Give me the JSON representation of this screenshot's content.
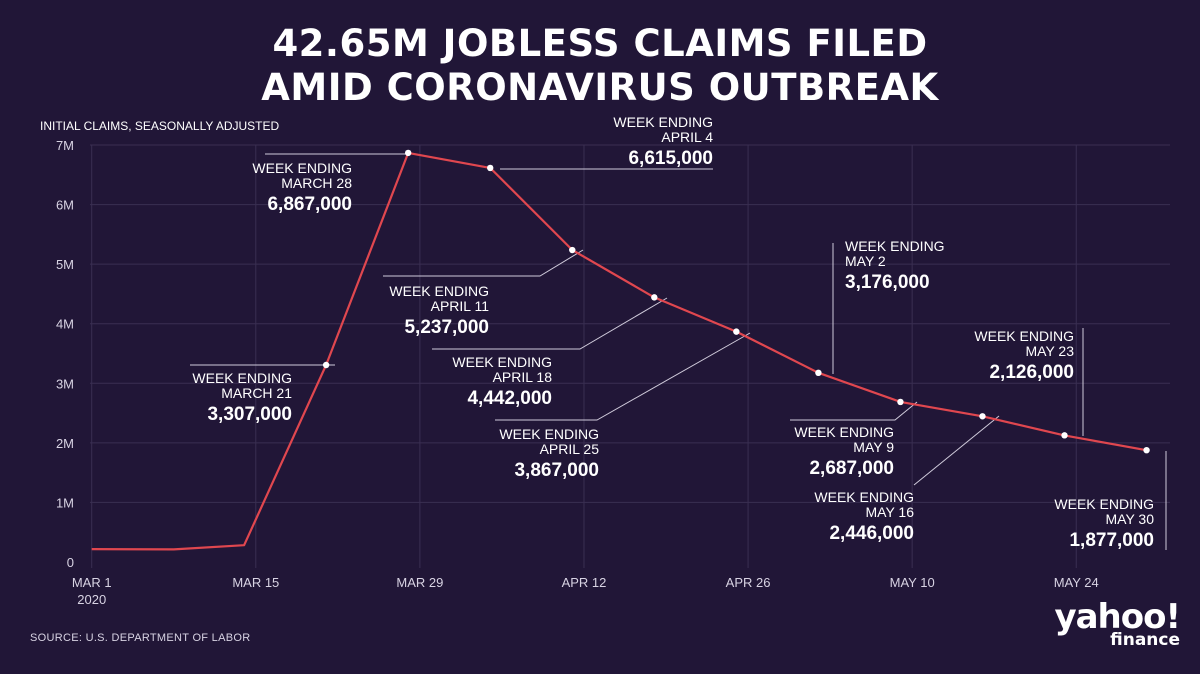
{
  "title_lines": [
    "42.65M JOBLESS CLAIMS FILED",
    "AMID CORONAVIRUS OUTBREAK"
  ],
  "source": "SOURCE:  U.S. DEPARTMENT OF LABOR",
  "logo": {
    "brand": "yahoo!",
    "sub": "finance"
  },
  "colors": {
    "background": "#211637",
    "line": "#e0474f",
    "grid": "#3a2f52",
    "text": "#ffffff",
    "axis_text": "#d8d3e3",
    "leader": "#d0cbdb"
  },
  "chart_data": {
    "type": "line",
    "ylabel": "INITIAL CLAIMS, SEASONALLY ADJUSTED",
    "ylim": [
      0,
      7000000
    ],
    "yticks": [
      0,
      1000000,
      2000000,
      3000000,
      4000000,
      5000000,
      6000000,
      7000000
    ],
    "ytick_labels": [
      "0",
      "1M",
      "2M",
      "3M",
      "4M",
      "5M",
      "6M",
      "7M"
    ],
    "xlim": [
      "2020-02-29",
      "2020-06-01"
    ],
    "xticks": [
      "2020-03-01",
      "2020-03-15",
      "2020-03-29",
      "2020-04-12",
      "2020-04-26",
      "2020-05-10",
      "2020-05-24"
    ],
    "xtick_labels": [
      [
        "MAR 1",
        "2020"
      ],
      [
        "MAR 15"
      ],
      [
        "MAR 29"
      ],
      [
        "APR 12"
      ],
      [
        "APR 26"
      ],
      [
        "MAY 10"
      ],
      [
        "MAY 24"
      ]
    ],
    "grid": true,
    "points": [
      {
        "date": "2020-03-01",
        "value": 217000
      },
      {
        "date": "2020-03-08",
        "value": 211000
      },
      {
        "date": "2020-03-14",
        "value": 282000
      },
      {
        "date": "2020-03-21",
        "value": 3307000,
        "label": [
          "WEEK ENDING",
          "MARCH 21"
        ],
        "value_label": "3,307,000"
      },
      {
        "date": "2020-03-28",
        "value": 6867000,
        "label": [
          "WEEK ENDING",
          "MARCH 28"
        ],
        "value_label": "6,867,000"
      },
      {
        "date": "2020-04-04",
        "value": 6615000,
        "label": [
          "WEEK ENDING",
          "APRIL 4"
        ],
        "value_label": "6,615,000"
      },
      {
        "date": "2020-04-11",
        "value": 5237000,
        "label": [
          "WEEK ENDING",
          "APRIL 11"
        ],
        "value_label": "5,237,000"
      },
      {
        "date": "2020-04-18",
        "value": 4442000,
        "label": [
          "WEEK ENDING",
          "APRIL 18"
        ],
        "value_label": "4,442,000"
      },
      {
        "date": "2020-04-25",
        "value": 3867000,
        "label": [
          "WEEK ENDING",
          "APRIL 25"
        ],
        "value_label": "3,867,000"
      },
      {
        "date": "2020-05-02",
        "value": 3176000,
        "label": [
          "WEEK ENDING",
          "MAY 2"
        ],
        "value_label": "3,176,000"
      },
      {
        "date": "2020-05-09",
        "value": 2687000,
        "label": [
          "WEEK ENDING",
          "MAY 9"
        ],
        "value_label": "2,687,000"
      },
      {
        "date": "2020-05-16",
        "value": 2446000,
        "label": [
          "WEEK ENDING",
          "MAY 16"
        ],
        "value_label": "2,446,000"
      },
      {
        "date": "2020-05-23",
        "value": 2126000,
        "label": [
          "WEEK ENDING",
          "MAY 23"
        ],
        "value_label": "2,126,000"
      },
      {
        "date": "2020-05-30",
        "value": 1877000,
        "label": [
          "WEEK ENDING",
          "MAY 30"
        ],
        "value_label": "1,877,000"
      }
    ]
  }
}
